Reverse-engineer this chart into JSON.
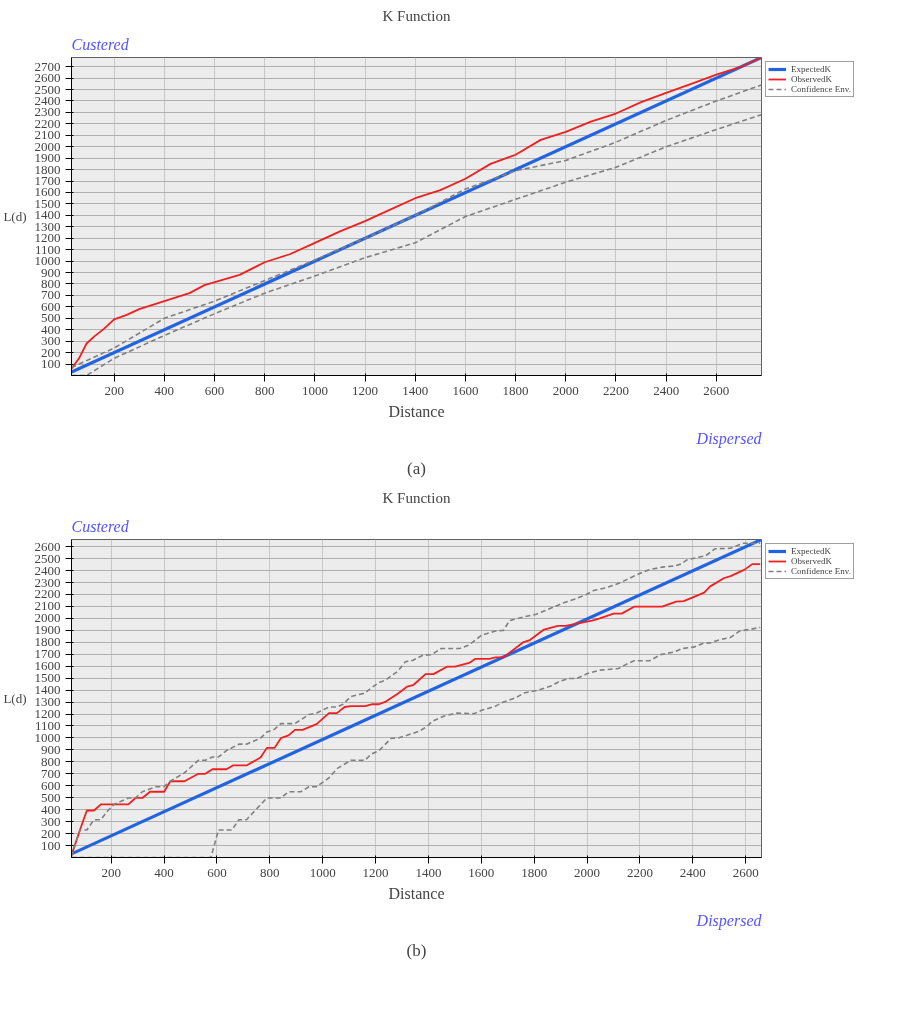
{
  "chart_data": [
    {
      "type": "line",
      "title": "K Function",
      "xlabel": "Distance",
      "ylabel": "L(d)",
      "annotations": [
        "Custered",
        "Dispersed",
        "(a)"
      ],
      "xlim": [
        30,
        2780
      ],
      "ylim": [
        0,
        2780
      ],
      "xticks": [
        200,
        400,
        600,
        800,
        1000,
        1200,
        1400,
        1600,
        1800,
        2000,
        2200,
        2400,
        2600
      ],
      "yticks": [
        100,
        200,
        300,
        400,
        500,
        600,
        700,
        800,
        900,
        1000,
        1100,
        1200,
        1300,
        1400,
        1500,
        1600,
        1700,
        1800,
        1900,
        2000,
        2100,
        2200,
        2300,
        2400,
        2500,
        2600,
        2700
      ],
      "grid": true,
      "legend": "top right",
      "series": [
        {
          "name": "ExpectedK",
          "color": "#2163e0",
          "x": [
            30,
            2780
          ],
          "values": [
            30,
            2780
          ]
        },
        {
          "name": "ObservedK",
          "color": "#f02020",
          "x": [
            30,
            60,
            90,
            120,
            160,
            200,
            250,
            300,
            400,
            500,
            560,
            700,
            800,
            900,
            1000,
            1100,
            1200,
            1300,
            1400,
            1500,
            1600,
            1700,
            1800,
            1900,
            2000,
            2100,
            2200,
            2300,
            2400,
            2500,
            2600,
            2700,
            2780
          ],
          "values": [
            60,
            150,
            280,
            340,
            410,
            490,
            530,
            580,
            650,
            720,
            790,
            880,
            990,
            1060,
            1160,
            1260,
            1350,
            1450,
            1550,
            1620,
            1720,
            1850,
            1930,
            2060,
            2130,
            2220,
            2290,
            2390,
            2470,
            2550,
            2630,
            2700,
            2780
          ]
        },
        {
          "name": "Confidence Env.",
          "color": "#808080",
          "line_style": "dashed",
          "x": [
            30,
            100,
            200,
            400,
            600,
            800,
            1000,
            1200,
            1400,
            1600,
            1800,
            2000,
            2200,
            2400,
            2600,
            2780
          ],
          "values": [
            70,
            140,
            240,
            500,
            650,
            830,
            1010,
            1200,
            1400,
            1630,
            1790,
            1880,
            2040,
            2230,
            2400,
            2540
          ]
        },
        {
          "color": "#808080",
          "line_style": "dashed",
          "x": [
            30,
            90,
            200,
            400,
            600,
            800,
            1000,
            1200,
            1400,
            1600,
            1800,
            2000,
            2200,
            2400,
            2600,
            2780
          ],
          "values": [
            0,
            0,
            150,
            350,
            540,
            720,
            870,
            1030,
            1160,
            1390,
            1540,
            1690,
            1820,
            2000,
            2150,
            2280
          ]
        }
      ]
    },
    {
      "type": "line",
      "title": "K Function",
      "xlabel": "Distance",
      "ylabel": "L(d)",
      "annotations": [
        "Custered",
        "Dispersed",
        "(b)"
      ],
      "xlim": [
        50,
        2660
      ],
      "ylim": [
        0,
        2660
      ],
      "xticks": [
        200,
        400,
        600,
        800,
        1000,
        1200,
        1400,
        1600,
        1800,
        2000,
        2200,
        2400,
        2600
      ],
      "yticks": [
        100,
        200,
        300,
        400,
        500,
        600,
        700,
        800,
        900,
        1000,
        1100,
        1200,
        1300,
        1400,
        1500,
        1600,
        1700,
        1800,
        1900,
        2000,
        2100,
        2200,
        2300,
        2400,
        2500,
        2600
      ],
      "grid": true,
      "legend": "top right",
      "series": [
        {
          "name": "ExpectedK",
          "color": "#2163e0",
          "x": [
            50,
            2660
          ],
          "values": [
            30,
            2660
          ]
        },
        {
          "name": "ObservedK",
          "color": "#f02020",
          "x": [
            50,
            82,
            108,
            135,
            161,
            235,
            265,
            292,
            318,
            347,
            400,
            424,
            477,
            530,
            556,
            583,
            636,
            660,
            712,
            765,
            789,
            818,
            842,
            871,
            895,
            924,
            977,
            1024,
            1054,
            1083,
            1107,
            1160,
            1189,
            1213,
            1236,
            1284,
            1319,
            1342,
            1389,
            1419,
            1472,
            1501,
            1554,
            1578,
            1631,
            1654,
            1684,
            1760,
            1784,
            1837,
            1890,
            1919,
            1966,
            2019,
            2048,
            2101,
            2131,
            2178,
            2284,
            2337,
            2366,
            2443,
            2466,
            2519,
            2543,
            2596,
            2625,
            2655
          ],
          "values": [
            20,
            230,
            393,
            393,
            445,
            445,
            445,
            498,
            498,
            550,
            550,
            638,
            638,
            700,
            700,
            738,
            738,
            770,
            770,
            836,
            917,
            917,
            998,
            1022,
            1068,
            1068,
            1115,
            1208,
            1208,
            1259,
            1266,
            1266,
            1282,
            1282,
            1301,
            1370,
            1429,
            1441,
            1534,
            1534,
            1597,
            1597,
            1627,
            1662,
            1662,
            1674,
            1674,
            1802,
            1819,
            1907,
            1937,
            1937,
            1958,
            1982,
            2000,
            2040,
            2040,
            2098,
            2098,
            2140,
            2145,
            2215,
            2268,
            2338,
            2354,
            2408,
            2454,
            2454
          ]
        },
        {
          "name": "Confidence Env.",
          "color": "#808080",
          "line_style": "dashed",
          "x": [
            50,
            82,
            108,
            135,
            161,
            188,
            212,
            265,
            292,
            318,
            371,
            400,
            424,
            477,
            530,
            556,
            583,
            606,
            636,
            683,
            712,
            765,
            789,
            818,
            842,
            871,
            895,
            948,
            977,
            1024,
            1054,
            1077,
            1107,
            1160,
            1183,
            1213,
            1236,
            1284,
            1313,
            1342,
            1377,
            1413,
            1448,
            1519,
            1554,
            1601,
            1654,
            1684,
            1707,
            1760,
            1808,
            1860,
            1908,
            1955,
            1996,
            2025,
            2072,
            2125,
            2178,
            2213,
            2237,
            2290,
            2331,
            2355,
            2378,
            2414,
            2449,
            2484,
            2543,
            2590,
            2655
          ],
          "values": [
            10,
            230,
            230,
            316,
            316,
            393,
            445,
            498,
            498,
            550,
            592,
            592,
            638,
            708,
            813,
            813,
            841,
            841,
            894,
            948,
            948,
            998,
            1050,
            1073,
            1120,
            1120,
            1120,
            1196,
            1208,
            1259,
            1259,
            1282,
            1347,
            1375,
            1417,
            1464,
            1482,
            1557,
            1638,
            1650,
            1690,
            1697,
            1748,
            1748,
            1778,
            1860,
            1895,
            1900,
            1982,
            2012,
            2035,
            2082,
            2128,
            2163,
            2198,
            2233,
            2256,
            2298,
            2354,
            2389,
            2408,
            2431,
            2438,
            2454,
            2489,
            2508,
            2524,
            2582,
            2587,
            2629,
            2629
          ]
        },
        {
          "color": "#808080",
          "line_style": "dashed",
          "x": [
            50,
            577,
            606,
            657,
            683,
            712,
            754,
            789,
            842,
            871,
            918,
            948,
            977,
            1024,
            1054,
            1107,
            1160,
            1183,
            1213,
            1260,
            1284,
            1319,
            1366,
            1395,
            1413,
            1460,
            1507,
            1572,
            1601,
            1654,
            1684,
            1731,
            1760,
            1813,
            1866,
            1896,
            1931,
            1960,
            2002,
            2049,
            2119,
            2149,
            2178,
            2237,
            2278,
            2331,
            2360,
            2408,
            2437,
            2466,
            2496,
            2543,
            2578,
            2614,
            2655
          ],
          "values": [
            0,
            0,
            230,
            230,
            316,
            316,
            416,
            498,
            498,
            550,
            550,
            592,
            592,
            666,
            743,
            813,
            813,
            864,
            894,
            998,
            998,
            1022,
            1057,
            1096,
            1138,
            1184,
            1208,
            1203,
            1231,
            1266,
            1301,
            1336,
            1375,
            1399,
            1436,
            1473,
            1497,
            1497,
            1539,
            1567,
            1581,
            1616,
            1646,
            1646,
            1697,
            1720,
            1748,
            1762,
            1790,
            1795,
            1818,
            1841,
            1895,
            1907,
            1925
          ]
        }
      ]
    }
  ]
}
